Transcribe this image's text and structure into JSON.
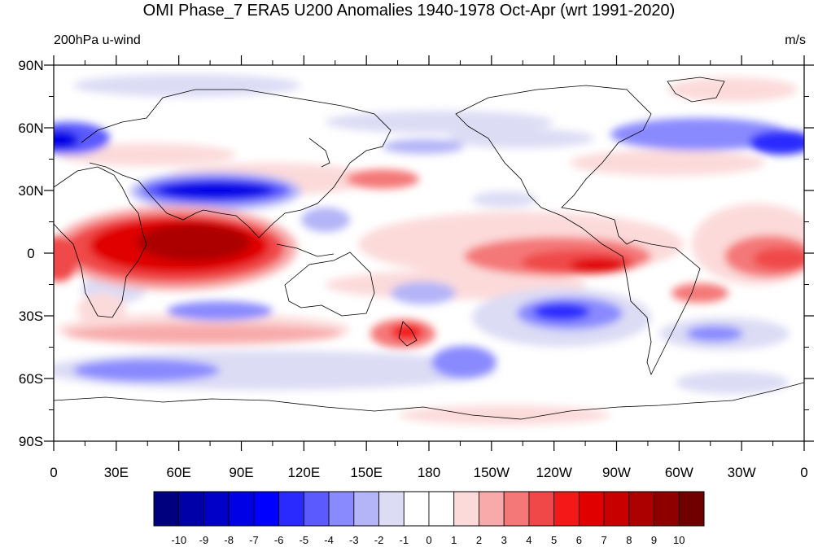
{
  "figure": {
    "title": "OMI Phase_7 ERA5 U200 Anomalies 1940-1978 Oct-Apr (wrt 1991-2020)",
    "left_string": "200hPa u-wind",
    "right_string": "m/s"
  },
  "map": {
    "projection": "cylindrical-equidistant",
    "lat_range": [
      -90,
      90
    ],
    "lon_range": [
      0,
      360
    ],
    "lat_ticks": [
      {
        "value": 90,
        "label": "90N"
      },
      {
        "value": 60,
        "label": "60N"
      },
      {
        "value": 30,
        "label": "30N"
      },
      {
        "value": 0,
        "label": "0"
      },
      {
        "value": -30,
        "label": "30S"
      },
      {
        "value": -60,
        "label": "60S"
      },
      {
        "value": -90,
        "label": "90S"
      }
    ],
    "lon_ticks": [
      {
        "value": 0,
        "label": "0"
      },
      {
        "value": 30,
        "label": "30E"
      },
      {
        "value": 60,
        "label": "60E"
      },
      {
        "value": 90,
        "label": "90E"
      },
      {
        "value": 120,
        "label": "120E"
      },
      {
        "value": 150,
        "label": "150E"
      },
      {
        "value": 180,
        "label": "180"
      },
      {
        "value": 210,
        "label": "150W"
      },
      {
        "value": 240,
        "label": "120W"
      },
      {
        "value": 270,
        "label": "90W"
      },
      {
        "value": 300,
        "label": "60W"
      },
      {
        "value": 330,
        "label": "30W"
      },
      {
        "value": 360,
        "label": "0"
      }
    ]
  },
  "colorbar": {
    "labels": [
      "-10",
      "-9",
      "-8",
      "-7",
      "-6",
      "-5",
      "-4",
      "-3",
      "-2",
      "-1",
      "0",
      "1",
      "2",
      "3",
      "4",
      "5",
      "6",
      "7",
      "8",
      "9",
      "10"
    ],
    "colors": [
      "#00007f",
      "#0000a8",
      "#0000c8",
      "#0000e6",
      "#0000ff",
      "#2a2aff",
      "#5a5aff",
      "#8a8aff",
      "#b4b4f8",
      "#dcdcf5",
      "#ffffff",
      "#ffffff",
      "#fcdada",
      "#f8aaaa",
      "#f47878",
      "#f04848",
      "#f41818",
      "#e00000",
      "#c80000",
      "#ac0000",
      "#8e0000",
      "#700000"
    ]
  },
  "chart_data": {
    "type": "heatmap",
    "variable": "200hPa u-wind",
    "units": "m/s",
    "levels": [
      -10,
      -9,
      -8,
      -7,
      -6,
      -5,
      -4,
      -3,
      -2,
      -1,
      0,
      1,
      2,
      3,
      4,
      5,
      6,
      7,
      8,
      9,
      10
    ],
    "anomaly_centers": [
      {
        "lon": 75,
        "lat": 30,
        "value": -10
      },
      {
        "lon": 70,
        "lat": 5,
        "value": 10
      },
      {
        "lon": 2,
        "lat": 0,
        "value": 5
      },
      {
        "lon": 265,
        "lat": -5,
        "value": 7
      },
      {
        "lon": 243,
        "lat": -27,
        "value": -6
      },
      {
        "lon": 355,
        "lat": 52,
        "value": -6
      },
      {
        "lon": 5,
        "lat": 55,
        "value": -6
      },
      {
        "lon": 170,
        "lat": -37,
        "value": 4
      },
      {
        "lon": 80,
        "lat": -28,
        "value": -4
      },
      {
        "lon": 190,
        "lat": 50,
        "value": -2
      },
      {
        "lon": 340,
        "lat": -2,
        "value": 5
      },
      {
        "lon": 310,
        "lat": -40,
        "value": -4
      },
      {
        "lon": 60,
        "lat": -56,
        "value": -4
      },
      {
        "lon": 200,
        "lat": -52,
        "value": -4
      },
      {
        "lon": 157,
        "lat": 35,
        "value": 3
      }
    ]
  }
}
